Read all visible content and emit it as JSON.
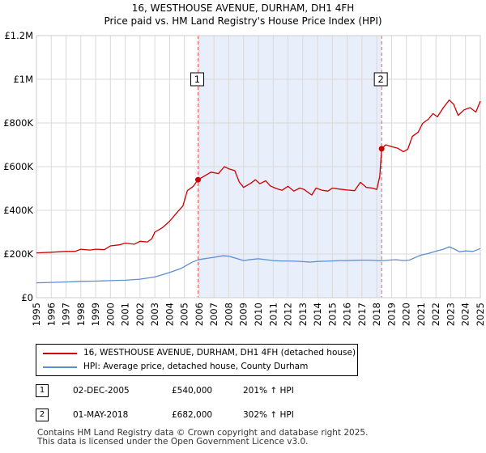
{
  "header": {
    "title": "16, WESTHOUSE AVENUE, DURHAM, DH1 4FH",
    "subtitle": "Price paid vs. HM Land Registry's House Price Index (HPI)"
  },
  "colors": {
    "property": "#cc0000",
    "hpi": "#5b8fd0",
    "shade": "#e8eefa",
    "grid": "#d9d9d9",
    "vline": "#e06060"
  },
  "chart_data": {
    "type": "line",
    "title": "16, WESTHOUSE AVENUE, DURHAM, DH1 4FH",
    "subtitle": "Price paid vs. HM Land Registry's House Price Index (HPI)",
    "xlim": [
      1995,
      2025
    ],
    "ylim": [
      0,
      1200000
    ],
    "x_ticks": [
      1995,
      1996,
      1997,
      1998,
      1999,
      2000,
      2001,
      2002,
      2003,
      2004,
      2005,
      2006,
      2007,
      2008,
      2009,
      2010,
      2011,
      2012,
      2013,
      2014,
      2015,
      2016,
      2017,
      2018,
      2019,
      2020,
      2021,
      2022,
      2023,
      2024,
      2025
    ],
    "y_ticks": [
      0,
      200000,
      400000,
      600000,
      800000,
      1000000,
      1200000
    ],
    "y_tick_labels": [
      "£0",
      "£200K",
      "£400K",
      "£600K",
      "£800K",
      "£1M",
      "£1.2M"
    ],
    "shaded_range": [
      2005.92,
      2018.33
    ],
    "series": [
      {
        "name": "16, WESTHOUSE AVENUE, DURHAM, DH1 4FH (detached house)",
        "color": "#cc0000",
        "points": [
          [
            1995,
            205000
          ],
          [
            1996,
            208000
          ],
          [
            1997,
            212000
          ],
          [
            1997.6,
            212000
          ],
          [
            1998,
            222000
          ],
          [
            1998.6,
            218000
          ],
          [
            1999,
            222000
          ],
          [
            1999.6,
            220000
          ],
          [
            2000,
            237000
          ],
          [
            2000.6,
            242000
          ],
          [
            2001,
            250000
          ],
          [
            2001.6,
            245000
          ],
          [
            2002,
            258000
          ],
          [
            2002.5,
            255000
          ],
          [
            2002.8,
            270000
          ],
          [
            2003,
            300000
          ],
          [
            2003.5,
            320000
          ],
          [
            2004,
            350000
          ],
          [
            2004.5,
            390000
          ],
          [
            2004.9,
            420000
          ],
          [
            2005.2,
            490000
          ],
          [
            2005.6,
            510000
          ],
          [
            2005.92,
            540000
          ],
          [
            2006.3,
            555000
          ],
          [
            2006.8,
            575000
          ],
          [
            2007.3,
            568000
          ],
          [
            2007.7,
            600000
          ],
          [
            2008,
            590000
          ],
          [
            2008.4,
            582000
          ],
          [
            2008.7,
            530000
          ],
          [
            2009,
            505000
          ],
          [
            2009.5,
            525000
          ],
          [
            2009.8,
            540000
          ],
          [
            2010.1,
            522000
          ],
          [
            2010.5,
            535000
          ],
          [
            2010.8,
            512000
          ],
          [
            2011.2,
            500000
          ],
          [
            2011.6,
            492000
          ],
          [
            2012,
            510000
          ],
          [
            2012.4,
            488000
          ],
          [
            2012.8,
            502000
          ],
          [
            2013.1,
            495000
          ],
          [
            2013.6,
            470000
          ],
          [
            2013.9,
            502000
          ],
          [
            2014.3,
            492000
          ],
          [
            2014.7,
            488000
          ],
          [
            2015,
            502000
          ],
          [
            2015.5,
            497000
          ],
          [
            2016,
            493000
          ],
          [
            2016.5,
            490000
          ],
          [
            2016.9,
            528000
          ],
          [
            2017.3,
            505000
          ],
          [
            2017.7,
            502000
          ],
          [
            2018.0,
            495000
          ],
          [
            2018.2,
            555000
          ],
          [
            2018.33,
            682000
          ],
          [
            2018.6,
            700000
          ],
          [
            2019,
            692000
          ],
          [
            2019.4,
            685000
          ],
          [
            2019.8,
            668000
          ],
          [
            2020.1,
            680000
          ],
          [
            2020.4,
            738000
          ],
          [
            2020.8,
            758000
          ],
          [
            2021.1,
            798000
          ],
          [
            2021.5,
            818000
          ],
          [
            2021.8,
            843000
          ],
          [
            2022.1,
            828000
          ],
          [
            2022.5,
            870000
          ],
          [
            2022.9,
            905000
          ],
          [
            2023.2,
            885000
          ],
          [
            2023.5,
            835000
          ],
          [
            2023.9,
            860000
          ],
          [
            2024.3,
            870000
          ],
          [
            2024.7,
            850000
          ],
          [
            2025,
            900000
          ]
        ]
      },
      {
        "name": "HPI: Average price, detached house, County Durham",
        "color": "#5b8fd0",
        "points": [
          [
            1995,
            68000
          ],
          [
            1996,
            70000
          ],
          [
            1997,
            72000
          ],
          [
            1998,
            75000
          ],
          [
            1999,
            76000
          ],
          [
            2000,
            78000
          ],
          [
            2001,
            80000
          ],
          [
            2002,
            85000
          ],
          [
            2003,
            95000
          ],
          [
            2004,
            115000
          ],
          [
            2004.8,
            135000
          ],
          [
            2005.5,
            162000
          ],
          [
            2006,
            175000
          ],
          [
            2006.5,
            180000
          ],
          [
            2007,
            185000
          ],
          [
            2007.6,
            192000
          ],
          [
            2008,
            190000
          ],
          [
            2008.5,
            180000
          ],
          [
            2009,
            170000
          ],
          [
            2009.5,
            175000
          ],
          [
            2010,
            178000
          ],
          [
            2010.5,
            174000
          ],
          [
            2011,
            170000
          ],
          [
            2011.5,
            168000
          ],
          [
            2012,
            168000
          ],
          [
            2012.5,
            167000
          ],
          [
            2013,
            165000
          ],
          [
            2013.5,
            163000
          ],
          [
            2014,
            166000
          ],
          [
            2014.5,
            167000
          ],
          [
            2015,
            168000
          ],
          [
            2015.5,
            170000
          ],
          [
            2016,
            170000
          ],
          [
            2016.5,
            171000
          ],
          [
            2017,
            172000
          ],
          [
            2017.5,
            172000
          ],
          [
            2018,
            170000
          ],
          [
            2018.33,
            169000
          ],
          [
            2018.8,
            172000
          ],
          [
            2019.3,
            174000
          ],
          [
            2019.8,
            170000
          ],
          [
            2020.2,
            172000
          ],
          [
            2020.6,
            184000
          ],
          [
            2021,
            195000
          ],
          [
            2021.5,
            203000
          ],
          [
            2022,
            213000
          ],
          [
            2022.5,
            222000
          ],
          [
            2022.9,
            233000
          ],
          [
            2023.2,
            224000
          ],
          [
            2023.6,
            210000
          ],
          [
            2024,
            214000
          ],
          [
            2024.5,
            212000
          ],
          [
            2025,
            225000
          ]
        ]
      }
    ],
    "sales": [
      {
        "label": "1",
        "x": 2005.92,
        "price": 540000
      },
      {
        "label": "2",
        "x": 2018.33,
        "price": 682000
      }
    ]
  },
  "legend": [
    {
      "label": "16, WESTHOUSE AVENUE, DURHAM, DH1 4FH (detached house)",
      "color": "#cc0000"
    },
    {
      "label": "HPI: Average price, detached house, County Durham",
      "color": "#5b8fd0"
    }
  ],
  "transactions": [
    {
      "num": "1",
      "date": "02-DEC-2005",
      "price": "£540,000",
      "hpi": "201% ↑ HPI"
    },
    {
      "num": "2",
      "date": "01-MAY-2018",
      "price": "£682,000",
      "hpi": "302% ↑ HPI"
    }
  ],
  "footer": {
    "line1": "Contains HM Land Registry data © Crown copyright and database right 2025.",
    "line2": "This data is licensed under the Open Government Licence v3.0."
  }
}
